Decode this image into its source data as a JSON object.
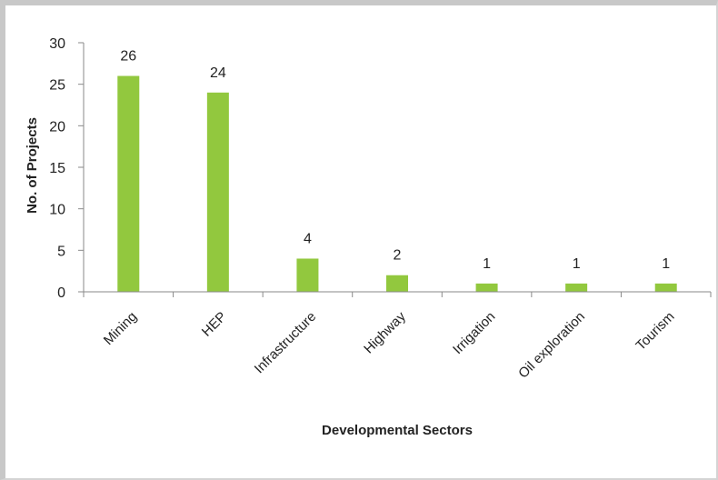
{
  "chart_data": {
    "type": "bar",
    "categories": [
      "Mining",
      "HEP",
      "Infrastructure",
      "Highway",
      "Irrigation",
      "Oil exploration",
      "Tourism"
    ],
    "values": [
      26,
      24,
      4,
      2,
      1,
      1,
      1
    ],
    "xlabel": "Developmental Sectors",
    "ylabel": "No. of Projects",
    "ylim": [
      0,
      30
    ],
    "yticks": [
      0,
      5,
      10,
      15,
      20,
      25,
      30
    ],
    "grid": false,
    "data_labels": true,
    "bar_color": "#92c83e"
  }
}
